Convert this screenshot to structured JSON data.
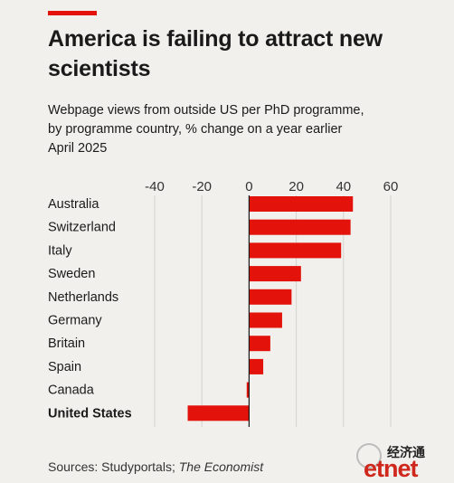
{
  "header": {
    "title": "America is failing to attract new scientists",
    "subtitle_line1": "Webpage views from outside US per PhD programme,",
    "subtitle_line2": "by programme country, % change on a year earlier",
    "subtitle_line3": "April 2025"
  },
  "footer": {
    "source_prefix": "Sources: Studyportals; ",
    "source_italic": "The Economist"
  },
  "watermark": {
    "cn_text": "经济通",
    "en_text": "etnet"
  },
  "colors": {
    "bar": "#e3120b",
    "background": "#f1f0ec",
    "grid": "#d4d2cc",
    "axis": "#1a1a1a"
  },
  "chart_data": {
    "type": "bar",
    "orientation": "horizontal",
    "categories": [
      "Australia",
      "Switzerland",
      "Italy",
      "Sweden",
      "Netherlands",
      "Germany",
      "Britain",
      "Spain",
      "Canada",
      "United States"
    ],
    "values": [
      44,
      43,
      39,
      22,
      18,
      14,
      9,
      6,
      -1,
      -26
    ],
    "highlight": "United States",
    "xticks": [
      -40,
      -20,
      0,
      20,
      40,
      60
    ],
    "xlim": [
      -40,
      60
    ],
    "grid": true
  }
}
